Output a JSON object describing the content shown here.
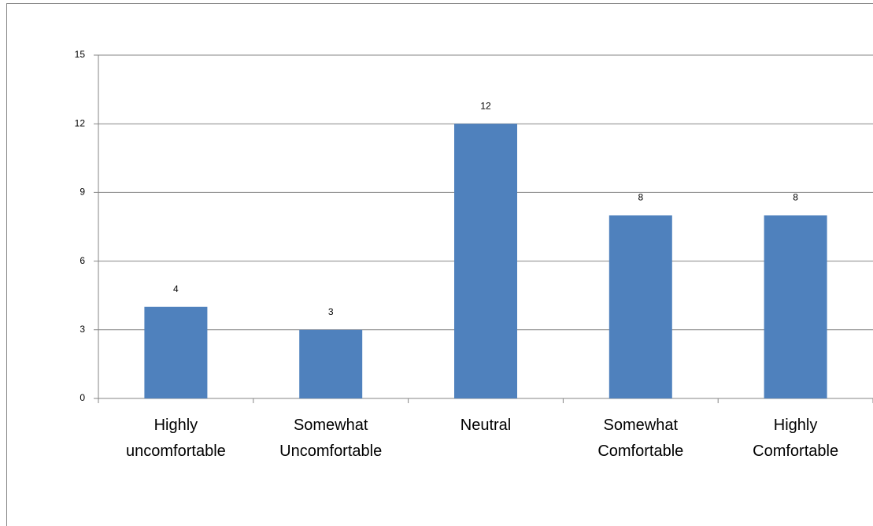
{
  "chart_data": {
    "type": "bar",
    "categories": [
      "Highly uncomfortable",
      "Somewhat Uncomfortable",
      "Neutral",
      "Somewhat Comfortable",
      "Highly Comfortable"
    ],
    "values": [
      4,
      3,
      12,
      8,
      8
    ],
    "color": "#4f81bd",
    "ylim": [
      0,
      15
    ],
    "yticks": [
      0,
      3,
      6,
      9,
      12,
      15
    ],
    "grid": true
  }
}
